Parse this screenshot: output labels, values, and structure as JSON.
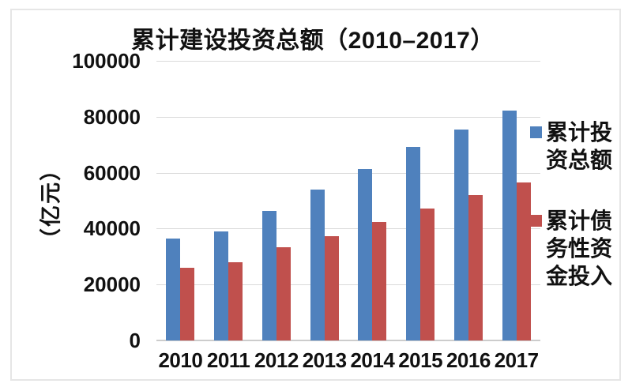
{
  "chart_data": {
    "type": "bar",
    "title": "累计建设投资总额（2010–2017）",
    "ylabel": "（亿元）",
    "xlabel": "",
    "categories": [
      "2010",
      "2011",
      "2012",
      "2013",
      "2014",
      "2015",
      "2016",
      "2017"
    ],
    "series": [
      {
        "name": "累计投资总额",
        "color": "#4F81BD",
        "values": [
          36400,
          38900,
          46200,
          54000,
          61400,
          69200,
          75500,
          82300
        ]
      },
      {
        "name": "累计债务性资金投入",
        "color": "#C0504D",
        "values": [
          26000,
          28000,
          33400,
          37300,
          42300,
          47300,
          52000,
          56400
        ]
      }
    ],
    "ylim": [
      0,
      100000
    ],
    "yticks": [
      0,
      20000,
      40000,
      60000,
      80000,
      100000
    ],
    "grid": true,
    "legend_position": "right"
  },
  "ui": {
    "colors": {
      "bar_blue": "#4F81BD",
      "bar_red": "#C0504D",
      "gridline": "#dadada",
      "axis_line": "#cccccc",
      "frame_border": "#e6e6e6",
      "text": "#111111",
      "background": "#ffffff"
    }
  }
}
